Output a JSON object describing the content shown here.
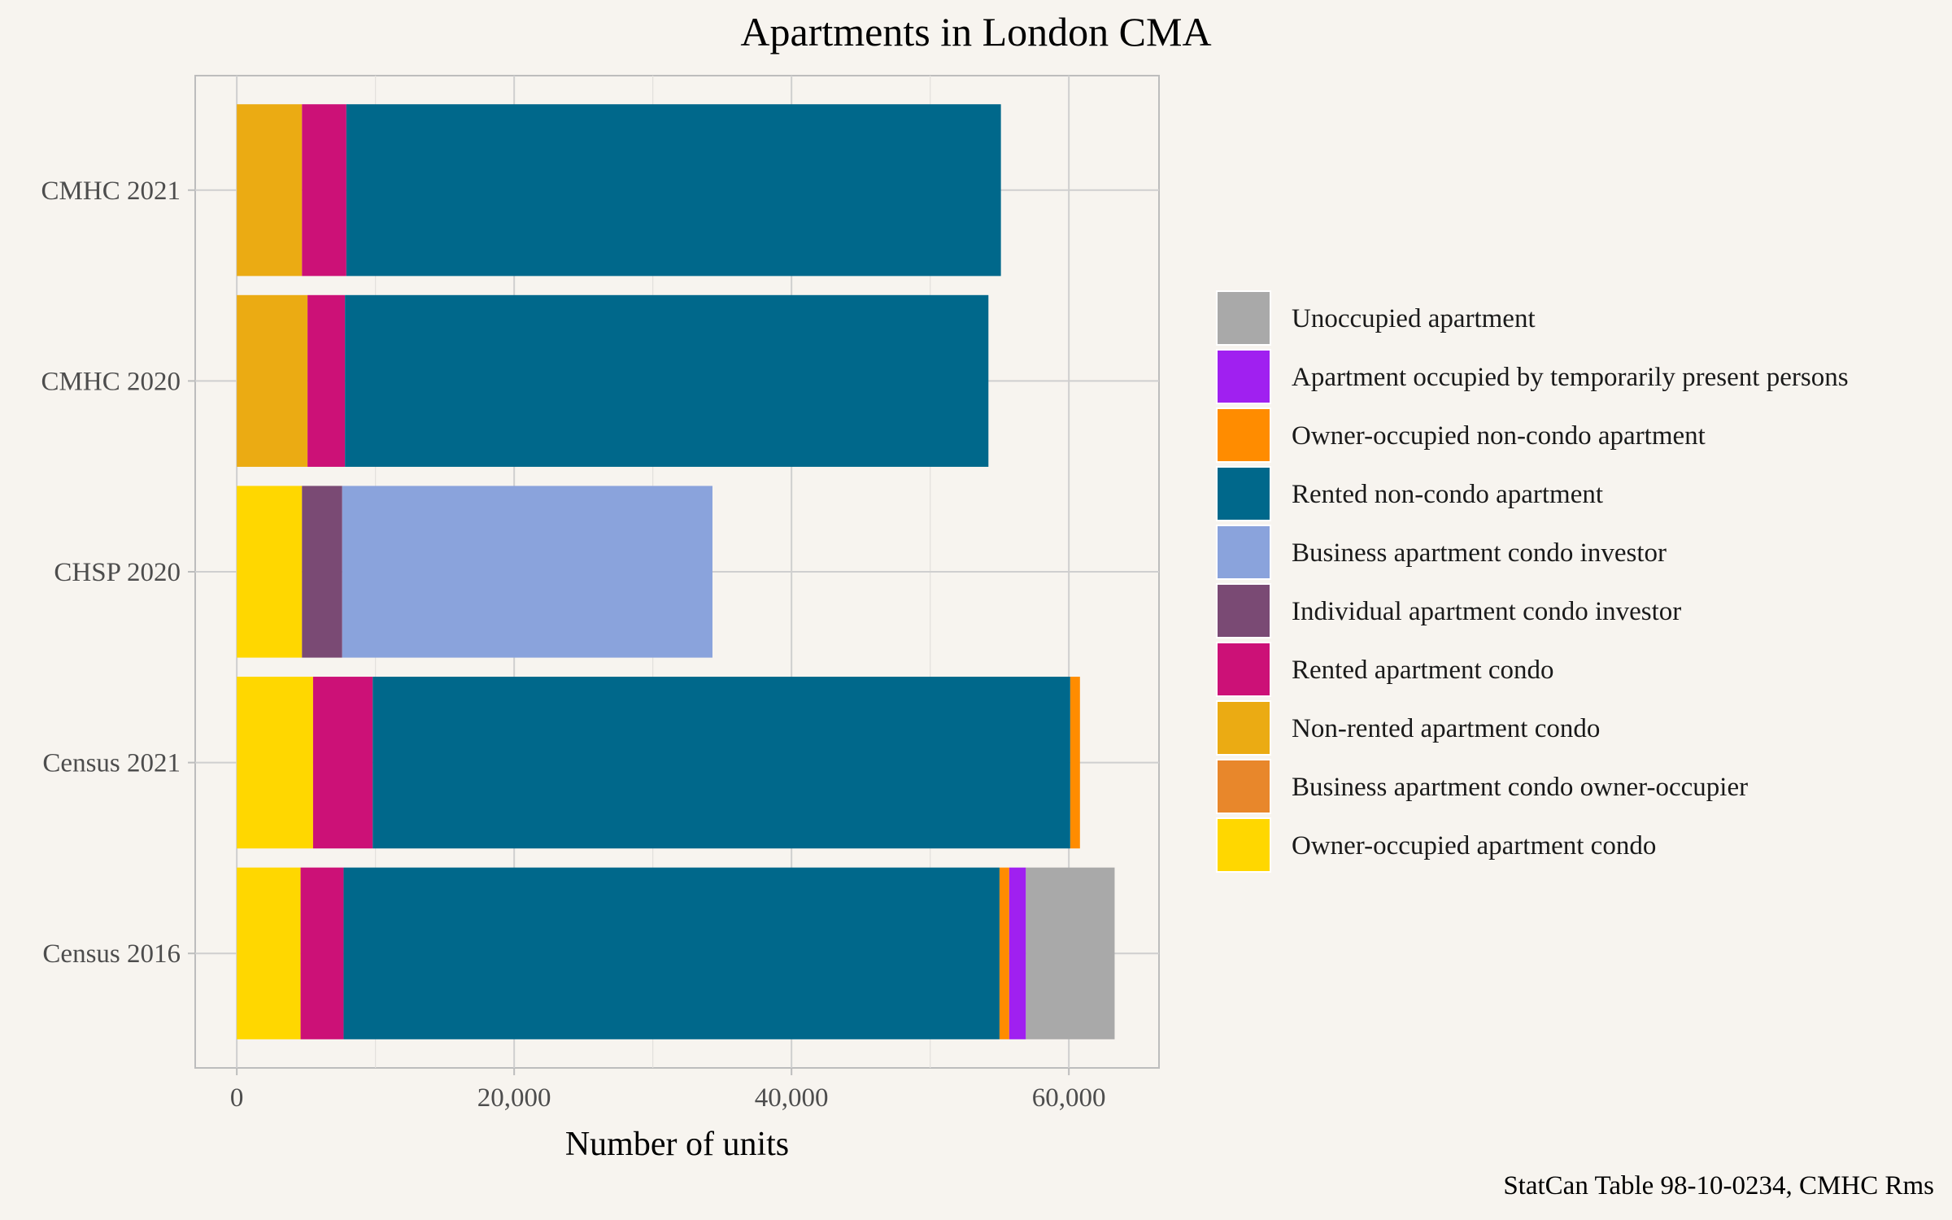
{
  "chart_data": {
    "type": "bar",
    "orientation": "horizontal",
    "stacked": true,
    "title": "Apartments in London CMA",
    "xlabel": "Number of units",
    "ylabel": "",
    "caption": "StatCan Table 98-10-0234, CMHC Rms",
    "xlim": [
      -3000,
      66500
    ],
    "xticks": [
      0,
      20000,
      40000,
      60000
    ],
    "xtick_labels": [
      "0",
      "20,000",
      "40,000",
      "60,000"
    ],
    "grid": true,
    "legend_position": "right",
    "categories": [
      "CMHC 2021",
      "CMHC 2020",
      "CHSP 2020",
      "Census 2021",
      "Census 2016"
    ],
    "stack_order": [
      "Owner-occupied apartment condo",
      "Business apartment condo owner-occupier",
      "Non-rented apartment condo",
      "Rented apartment condo",
      "Individual apartment condo investor",
      "Business apartment condo investor",
      "Rented non-condo apartment",
      "Owner-occupied non-condo apartment",
      "Apartment occupied by temporarily present persons",
      "Unoccupied apartment"
    ],
    "series": [
      {
        "name": "Unoccupied apartment",
        "color": "#a9a9a9",
        "values": [
          0,
          0,
          0,
          0,
          6400
        ]
      },
      {
        "name": "Apartment occupied by temporarily present persons",
        "color": "#a020f0",
        "values": [
          0,
          0,
          0,
          0,
          1200
        ]
      },
      {
        "name": "Owner-occupied non-condo apartment",
        "color": "#ff8c00",
        "values": [
          0,
          0,
          0,
          700,
          700
        ]
      },
      {
        "name": "Rented non-condo apartment",
        "color": "#00688b",
        "values": [
          47200,
          46400,
          0,
          50300,
          47300
        ]
      },
      {
        "name": "Business apartment condo investor",
        "color": "#8aa3dc",
        "values": [
          0,
          0,
          26700,
          0,
          0
        ]
      },
      {
        "name": "Individual apartment condo investor",
        "color": "#7a4a74",
        "values": [
          0,
          0,
          2900,
          0,
          0
        ]
      },
      {
        "name": "Rented apartment condo",
        "color": "#cc1177",
        "values": [
          3200,
          2700,
          0,
          4300,
          3100
        ]
      },
      {
        "name": "Non-rented apartment condo",
        "color": "#ebab13",
        "values": [
          4700,
          5100,
          0,
          0,
          0
        ]
      },
      {
        "name": "Business apartment condo owner-occupier",
        "color": "#e8872b",
        "values": [
          0,
          0,
          0,
          0,
          0
        ]
      },
      {
        "name": "Owner-occupied apartment condo",
        "color": "#ffd700",
        "values": [
          0,
          0,
          4700,
          5500,
          4600
        ]
      }
    ]
  }
}
